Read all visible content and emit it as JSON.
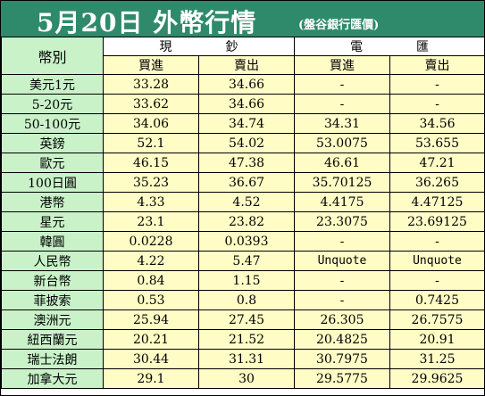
{
  "header": {
    "title": "5月20日 外幣行情",
    "subtitle": "(盤谷銀行匯價)"
  },
  "table": {
    "currency_col": "幣別",
    "cash_group": "現鈔",
    "tt_group": "電匯",
    "buy": "買進",
    "sell": "賣出",
    "rows": [
      {
        "name": "美元1元",
        "cash_buy": "33.28",
        "cash_sell": "34.66",
        "tt_buy": "-",
        "tt_sell": "-"
      },
      {
        "name": "5-20元",
        "cash_buy": "33.62",
        "cash_sell": "34.66",
        "tt_buy": "-",
        "tt_sell": "-"
      },
      {
        "name": "50-100元",
        "cash_buy": "34.06",
        "cash_sell": "34.74",
        "tt_buy": "34.31",
        "tt_sell": "34.56"
      },
      {
        "name": "英鎊",
        "cash_buy": "52.1",
        "cash_sell": "54.02",
        "tt_buy": "53.0075",
        "tt_sell": "53.655"
      },
      {
        "name": "歐元",
        "cash_buy": "46.15",
        "cash_sell": "47.38",
        "tt_buy": "46.61",
        "tt_sell": "47.21"
      },
      {
        "name": "100日圓",
        "cash_buy": "35.23",
        "cash_sell": "36.67",
        "tt_buy": "35.70125",
        "tt_sell": "36.265"
      },
      {
        "name": "港幣",
        "cash_buy": "4.33",
        "cash_sell": "4.52",
        "tt_buy": "4.4175",
        "tt_sell": "4.47125"
      },
      {
        "name": "星元",
        "cash_buy": "23.1",
        "cash_sell": "23.82",
        "tt_buy": "23.3075",
        "tt_sell": "23.69125"
      },
      {
        "name": "韓圓",
        "cash_buy": "0.0228",
        "cash_sell": "0.0393",
        "tt_buy": "-",
        "tt_sell": "-"
      },
      {
        "name": "人民幣",
        "cash_buy": "4.22",
        "cash_sell": "5.47",
        "tt_buy": "Unquote",
        "tt_sell": "Unquote"
      },
      {
        "name": "新台幣",
        "cash_buy": "0.84",
        "cash_sell": "1.15",
        "tt_buy": "-",
        "tt_sell": "-"
      },
      {
        "name": "菲披索",
        "cash_buy": "0.53",
        "cash_sell": "0.8",
        "tt_buy": "-",
        "tt_sell": "0.7425"
      },
      {
        "name": "澳洲元",
        "cash_buy": "25.94",
        "cash_sell": "27.45",
        "tt_buy": "26.305",
        "tt_sell": "26.7575"
      },
      {
        "name": "紐西蘭元",
        "cash_buy": "20.21",
        "cash_sell": "21.52",
        "tt_buy": "20.4825",
        "tt_sell": "20.91"
      },
      {
        "name": "瑞士法朗",
        "cash_buy": "30.44",
        "cash_sell": "31.31",
        "tt_buy": "30.7975",
        "tt_sell": "31.25"
      },
      {
        "name": "加拿大元",
        "cash_buy": "29.1",
        "cash_sell": "30",
        "tt_buy": "29.5775",
        "tt_sell": "29.9625"
      }
    ]
  },
  "colors": {
    "title_bg": "#2e8a6b",
    "name_col_bg": "#c9f2c9",
    "value_bg": "#fffcc6"
  }
}
